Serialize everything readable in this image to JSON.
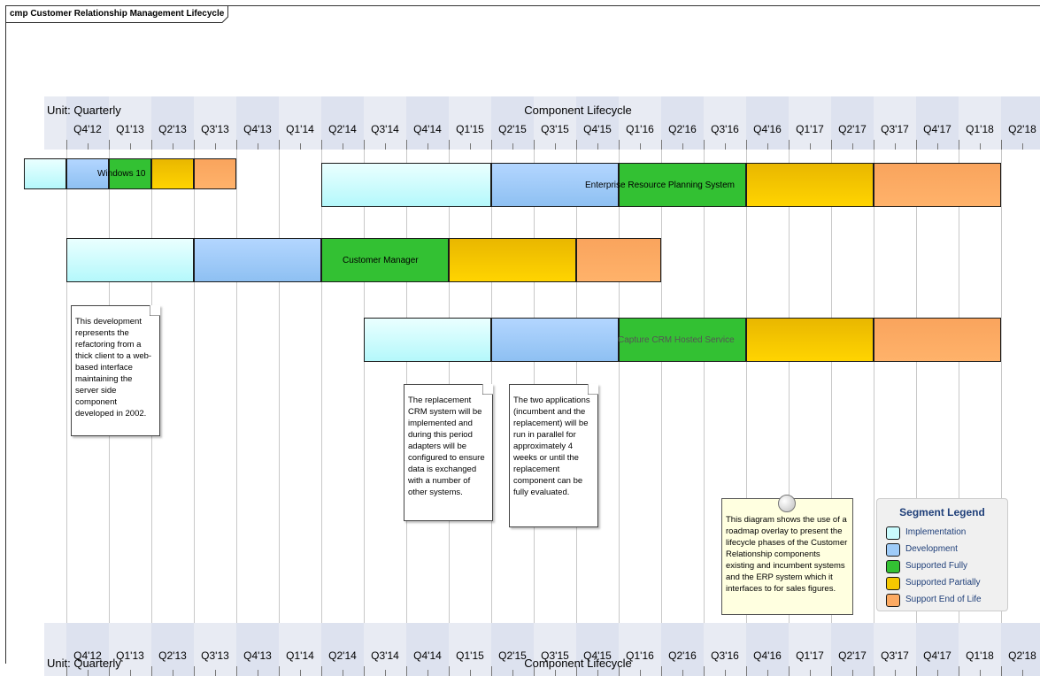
{
  "diagram": {
    "frame_title": "cmp Customer Relationship Management Lifecycle"
  },
  "timeline": {
    "unit_label": "Unit: Quarterly",
    "title": "Component Lifecycle",
    "quarters": [
      "Q4'12",
      "Q1'13",
      "Q2'13",
      "Q3'13",
      "Q4'13",
      "Q1'14",
      "Q2'14",
      "Q3'14",
      "Q4'14",
      "Q1'15",
      "Q2'15",
      "Q3'15",
      "Q4'15",
      "Q1'16",
      "Q2'16",
      "Q3'16",
      "Q4'16",
      "Q1'17",
      "Q2'17",
      "Q3'17",
      "Q4'17",
      "Q1'18",
      "Q2'18"
    ]
  },
  "components": [
    {
      "name": "Windows 10",
      "segments": [
        {
          "phase": "implementation",
          "start": "Q3'12",
          "end": "Q4'12"
        },
        {
          "phase": "development",
          "start": "Q4'12",
          "end": "Q1'13"
        },
        {
          "phase": "supported_fully",
          "start": "Q1'13",
          "end": "Q2'13"
        },
        {
          "phase": "supported_partially",
          "start": "Q2'13",
          "end": "Q3'13"
        },
        {
          "phase": "support_end",
          "start": "Q3'13",
          "end": "Q4'13"
        }
      ]
    },
    {
      "name": "Enterprise Resource Planning System",
      "segments": [
        {
          "phase": "implementation",
          "start": "Q2'14",
          "end": "Q2'15"
        },
        {
          "phase": "development",
          "start": "Q2'15",
          "end": "Q1'16"
        },
        {
          "phase": "supported_fully",
          "start": "Q1'16",
          "end": "Q4'16"
        },
        {
          "phase": "supported_partially",
          "start": "Q4'16",
          "end": "Q3'17"
        },
        {
          "phase": "support_end",
          "start": "Q3'17",
          "end": "Q2'18"
        }
      ]
    },
    {
      "name": "Customer Manager",
      "segments": [
        {
          "phase": "implementation",
          "start": "Q4'12",
          "end": "Q3'13"
        },
        {
          "phase": "development",
          "start": "Q3'13",
          "end": "Q2'14"
        },
        {
          "phase": "supported_fully",
          "start": "Q2'14",
          "end": "Q1'15"
        },
        {
          "phase": "supported_partially",
          "start": "Q1'15",
          "end": "Q4'15"
        },
        {
          "phase": "support_end",
          "start": "Q4'15",
          "end": "Q2'16"
        }
      ]
    },
    {
      "name": "Capture CRM Hosted Service",
      "segments": [
        {
          "phase": "implementation",
          "start": "Q3'14",
          "end": "Q2'15"
        },
        {
          "phase": "development",
          "start": "Q2'15",
          "end": "Q1'16"
        },
        {
          "phase": "supported_fully",
          "start": "Q1'16",
          "end": "Q4'16"
        },
        {
          "phase": "supported_partially",
          "start": "Q4'16",
          "end": "Q3'17"
        },
        {
          "phase": "support_end",
          "start": "Q3'17",
          "end": "Q2'18"
        }
      ]
    }
  ],
  "notes": [
    {
      "text": "This development represents the refactoring from a thick client to a web-based interface maintaining the server side component developed in 2002."
    },
    {
      "text": "The replacement CRM system will be implemented and during this period adapters will be configured to ensure data is exchanged with a number of other systems."
    },
    {
      "text": "The two applications (incumbent and the replacement) will be run in parallel for approximately 4 weeks or until the replacement component can be fully evaluated."
    }
  ],
  "overlay_note": {
    "text": "This diagram shows the use of a roadmap overlay to present the lifecycle phases of the Customer Relationship components existing and incumbent systems and the ERP system which it interfaces to for sales figures."
  },
  "legend": {
    "title": "Segment Legend",
    "items": [
      {
        "phase": "implementation",
        "label": "Implementation",
        "color": "#c9fbfd"
      },
      {
        "phase": "development",
        "label": "Development",
        "color": "#9ecbf8"
      },
      {
        "phase": "supported_fully",
        "label": "Supported Fully",
        "color": "#33c133"
      },
      {
        "phase": "supported_partially",
        "label": "Supported Partially",
        "color": "#f5c800"
      },
      {
        "phase": "support_end",
        "label": "Support End of Life",
        "color": "#fcaa62"
      }
    ]
  }
}
